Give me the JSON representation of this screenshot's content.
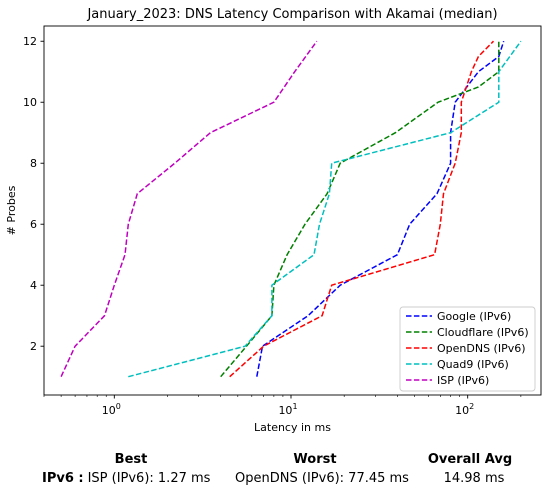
{
  "chart_data": {
    "type": "line",
    "title": "January_2023: DNS Latency Comparison with Akamai (median)",
    "xlabel": "Latency in ms",
    "ylabel": "# Probes",
    "xscale": "log",
    "xlim": [
      0.4,
      260
    ],
    "ylim": [
      0.4,
      12.5
    ],
    "xticks": [
      {
        "value": 1,
        "base": "10",
        "exp": "0"
      },
      {
        "value": 10,
        "base": "10",
        "exp": "1"
      },
      {
        "value": 100,
        "base": "10",
        "exp": "2"
      }
    ],
    "yticks": [
      2,
      4,
      6,
      8,
      10,
      12
    ],
    "grid": false,
    "legend_position": "lower-right",
    "series": [
      {
        "name": "Google (IPv6)",
        "color": "#0000ff",
        "x": [
          6.4,
          6.9,
          12.5,
          19,
          40,
          47,
          67,
          80,
          80,
          85,
          115,
          150,
          160
        ],
        "y": [
          1,
          2,
          3,
          4,
          5,
          6,
          7,
          8,
          9,
          10,
          11,
          11.5,
          12
        ]
      },
      {
        "name": "Cloudflare (IPv6)",
        "color": "#008000",
        "x": [
          4.0,
          5.6,
          7.8,
          8.0,
          9.5,
          12,
          16,
          19,
          39,
          68,
          115,
          150,
          150
        ],
        "y": [
          1,
          2,
          3,
          4,
          5,
          6,
          7,
          8,
          9,
          10,
          10.5,
          11,
          12
        ]
      },
      {
        "name": "OpenDNS (IPv6)",
        "color": "#ff0000",
        "x": [
          4.5,
          7.0,
          15,
          17,
          65,
          70,
          73,
          85,
          92,
          92,
          105,
          115,
          140
        ],
        "y": [
          1,
          2,
          3,
          4,
          5,
          6,
          7,
          8,
          9,
          10,
          11,
          11.5,
          12
        ]
      },
      {
        "name": "Quad9 (IPv6)",
        "color": "#00bfbf",
        "x": [
          1.2,
          5.5,
          7.8,
          7.8,
          13.5,
          14.5,
          16.5,
          17,
          80,
          150,
          150,
          200
        ],
        "y": [
          1,
          2,
          3,
          4,
          5,
          6,
          7,
          8,
          9,
          10,
          11,
          12
        ]
      },
      {
        "name": "ISP (IPv6)",
        "color": "#bf00bf",
        "x": [
          0.5,
          0.6,
          0.88,
          1.0,
          1.15,
          1.2,
          1.35,
          2.2,
          3.5,
          8.0,
          10.5,
          14.0
        ],
        "y": [
          1,
          2,
          3,
          4,
          5,
          6,
          7,
          8,
          9,
          10,
          11,
          12
        ]
      }
    ]
  },
  "summary": {
    "headers": [
      "Best",
      "Worst",
      "Overall Avg"
    ],
    "row_label": "IPv6 :",
    "best": "ISP (IPv6): 1.27 ms",
    "worst": "OpenDNS (IPv6): 77.45 ms",
    "avg": "14.98 ms"
  }
}
